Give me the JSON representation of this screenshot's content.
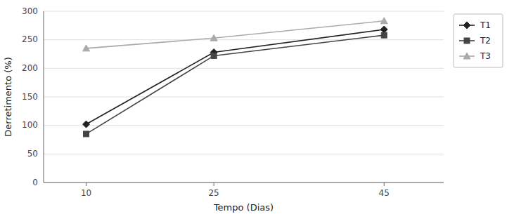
{
  "chart_data": {
    "type": "line",
    "xlabel": "Tempo (Dias)",
    "ylabel": "Derretimento (%)",
    "x": [
      10,
      25,
      45
    ],
    "series": [
      {
        "name": "T1",
        "color": "#222222",
        "marker": "diamond",
        "values": [
          102,
          228,
          268
        ]
      },
      {
        "name": "T2",
        "color": "#444444",
        "marker": "square",
        "values": [
          85,
          222,
          258
        ]
      },
      {
        "name": "T3",
        "color": "#aaaaaa",
        "marker": "triangle",
        "values": [
          235,
          253,
          283
        ]
      }
    ],
    "xlim": [
      5,
      52
    ],
    "ylim": [
      0,
      300
    ],
    "xticks": [
      10,
      25,
      45
    ],
    "yticks": [
      0,
      50,
      100,
      150,
      200,
      250,
      300
    ],
    "grid": true,
    "legend": "right"
  }
}
